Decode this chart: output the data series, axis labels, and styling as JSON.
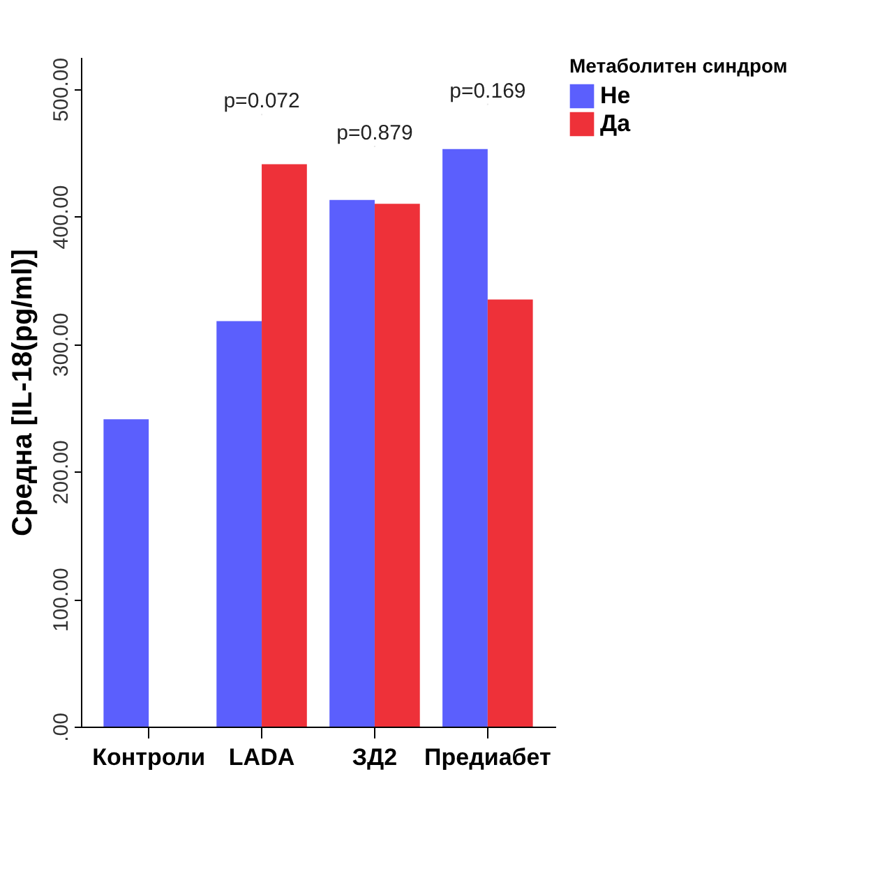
{
  "chart_data": {
    "type": "bar",
    "ylabel": "Средна [IL-18(pg/ml)]",
    "legend_title": "Метаболитен синдром",
    "categories": [
      "Контроли",
      "LADA",
      "ЗД2",
      "Предиабет"
    ],
    "series": [
      {
        "name": "Не",
        "color": "#5b5ffd",
        "values": [
          241,
          318,
          413,
          453
        ]
      },
      {
        "name": "Да",
        "color": "#ee3139",
        "values": [
          null,
          441,
          410,
          335
        ]
      }
    ],
    "ylim": [
      0,
      525
    ],
    "yticks": [
      {
        "value": 0,
        "label": ".00"
      },
      {
        "value": 100,
        "label": "100.00"
      },
      {
        "value": 200,
        "label": "200.00"
      },
      {
        "value": 300,
        "label": "300.00"
      },
      {
        "value": 400,
        "label": "400.00"
      },
      {
        "value": 500,
        "label": "500.00"
      }
    ],
    "grid": false,
    "legend": "top right",
    "annotations": [
      {
        "text": "p=0.072",
        "x": "LADA",
        "y": 480
      },
      {
        "text": "p=0.879",
        "x": "ЗД2",
        "y": 455
      },
      {
        "text": "p=0.169",
        "x": "Предиабет",
        "y": 488
      }
    ]
  }
}
